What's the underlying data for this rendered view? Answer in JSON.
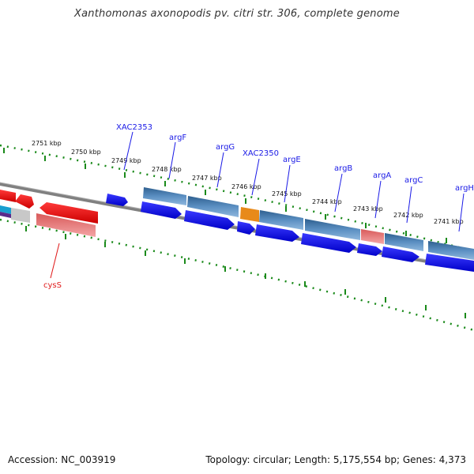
{
  "title": "Xanthomonas axonopodis pv. citri str. 306, complete genome",
  "footer": {
    "accession": "Accession: NC_003919",
    "summary": "Topology: circular; Length: 5,175,554 bp; Genes: 4,373"
  },
  "ticks": [
    "2751 kbp",
    "2750 kbp",
    "2749 kbp",
    "2748 kbp",
    "2747 kbp",
    "2746 kbp",
    "2745 kbp",
    "2744 kbp",
    "2743 kbp",
    "2742 kbp",
    "2741 kbp"
  ],
  "gene_labels": [
    "XAC2353",
    "argF",
    "argG",
    "XAC2350",
    "argE",
    "argB",
    "argA",
    "argC",
    "argH",
    "cysS"
  ],
  "colors": {
    "forward_cds": "#1414e6",
    "reverse_cds": "#e01414",
    "other_gene": "#4a7fb5",
    "backbone": "#808080",
    "tick": "#1a8a1a",
    "label_blue": "#1a1ae6",
    "label_red": "#e01a1a"
  }
}
